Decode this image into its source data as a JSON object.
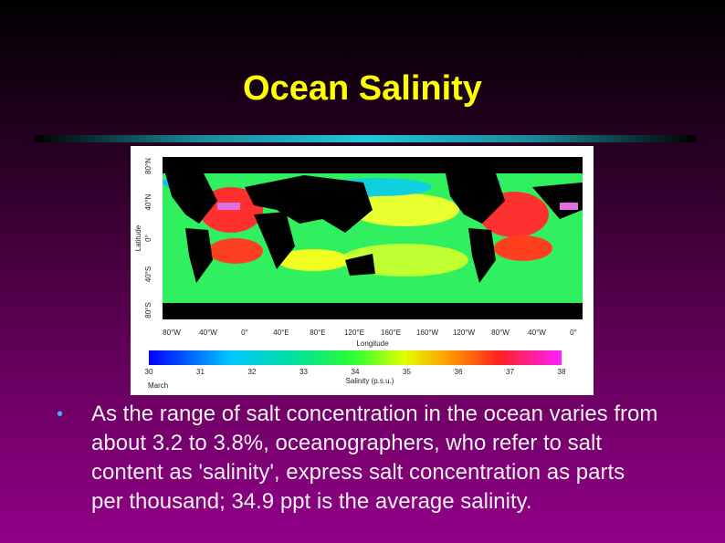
{
  "title": "Ocean Salinity",
  "figure": {
    "y_axis_label": "Latitude",
    "y_ticks": [
      "80°N",
      "40°N",
      "0°",
      "40°S",
      "80°S"
    ],
    "x_axis_label": "Longitude",
    "x_ticks": [
      "80°W",
      "40°W",
      "0°",
      "40°E",
      "80°E",
      "120°E",
      "160°E",
      "160°W",
      "120°W",
      "80°W",
      "40°W",
      "0°"
    ],
    "colorbar_ticks": [
      "30",
      "31",
      "32",
      "33",
      "34",
      "35",
      "36",
      "37",
      "38"
    ],
    "colorbar_label": "Salinity (p.s.u.)",
    "month": "March"
  },
  "bullets": [
    "As the range of salt concentration in the ocean varies from about 3.2 to 3.8%, oceanographers, who refer to salt content as 'salinity', express salt concentration as parts per thousand; 34.9 ppt is the average salinity."
  ]
}
